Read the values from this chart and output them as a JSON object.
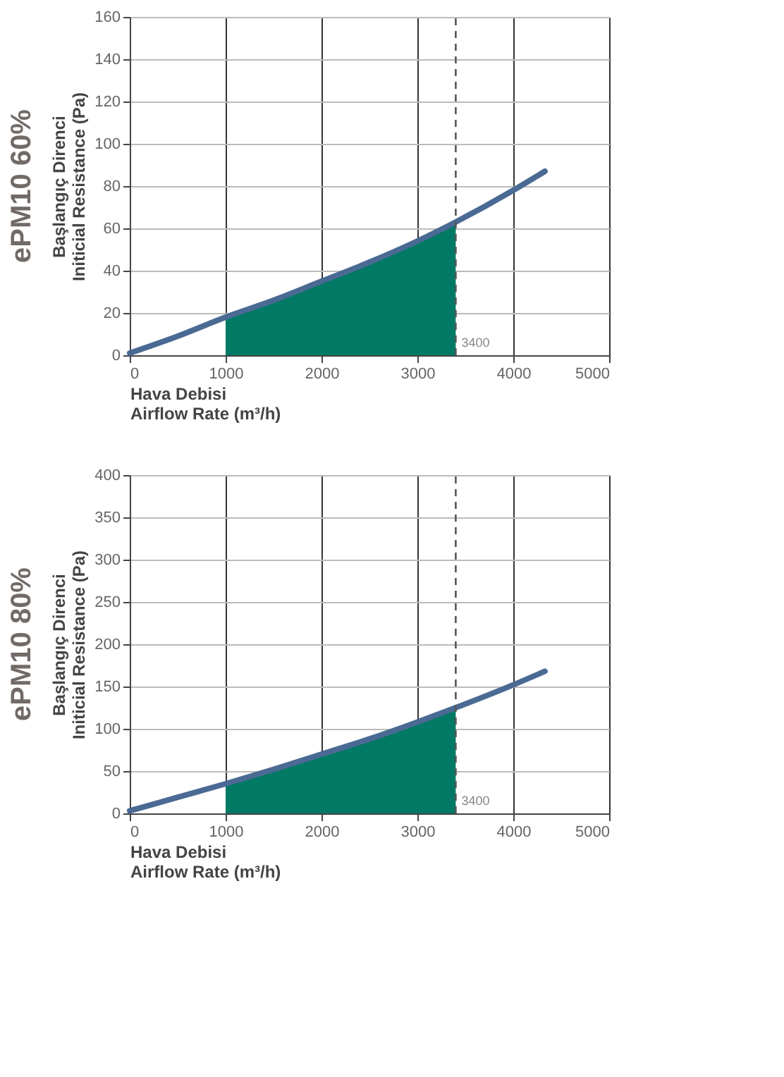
{
  "chart_data": [
    {
      "type": "line",
      "title": "ePM10  60%",
      "xlabel": "Hava Debisi\nAirflow Rate (m³/h)",
      "ylabel": "Başlangıç Direnci\nIniticial Resistance (Pa)",
      "xlim": [
        0,
        5000
      ],
      "xticks": [
        0,
        1000,
        2000,
        3000,
        4000,
        5000
      ],
      "ylim": [
        0,
        160
      ],
      "yticks": [
        0,
        20,
        40,
        60,
        80,
        100,
        120,
        140,
        160
      ],
      "grid": true,
      "series": [
        {
          "type": "area",
          "color": "#007a64",
          "x": [
            1000,
            1500,
            2000,
            2500,
            3000,
            3400
          ],
          "values": [
            18,
            26,
            35,
            44,
            54,
            63
          ]
        },
        {
          "color": "#4a6a94",
          "x": [
            0,
            500,
            1000,
            1500,
            2000,
            2500,
            3000,
            3400,
            4000,
            4330
          ],
          "values": [
            1,
            9,
            18,
            26,
            35,
            44,
            54,
            63,
            78,
            87
          ]
        }
      ],
      "ref_lines": [
        {
          "axis": "x",
          "value": 3400,
          "label": "3400",
          "line_style": "dashed",
          "color": "#555555"
        }
      ]
    },
    {
      "type": "line",
      "title": "ePM10  80%",
      "xlabel": "Hava Debisi\nAirflow Rate (m³/h)",
      "ylabel": "Başlangıç Direnci\nIniticial Resistance (Pa)",
      "xlim": [
        0,
        5000
      ],
      "xticks": [
        0,
        1000,
        2000,
        3000,
        4000,
        5000
      ],
      "ylim": [
        0,
        400
      ],
      "yticks": [
        0,
        50,
        100,
        150,
        200,
        250,
        300,
        350,
        400
      ],
      "grid": true,
      "series": [
        {
          "type": "area",
          "color": "#007a64",
          "x": [
            1000,
            1500,
            2000,
            2500,
            3000,
            3400
          ],
          "values": [
            35,
            52,
            70,
            88,
            108,
            125
          ]
        },
        {
          "color": "#4a6a94",
          "x": [
            0,
            500,
            1000,
            1500,
            2000,
            2500,
            3000,
            3400,
            4000,
            4330
          ],
          "values": [
            3,
            19,
            35,
            52,
            70,
            88,
            108,
            125,
            152,
            168
          ]
        }
      ],
      "ref_lines": [
        {
          "axis": "x",
          "value": 3400,
          "label": "3400",
          "line_style": "dashed",
          "color": "#555555"
        }
      ]
    }
  ]
}
